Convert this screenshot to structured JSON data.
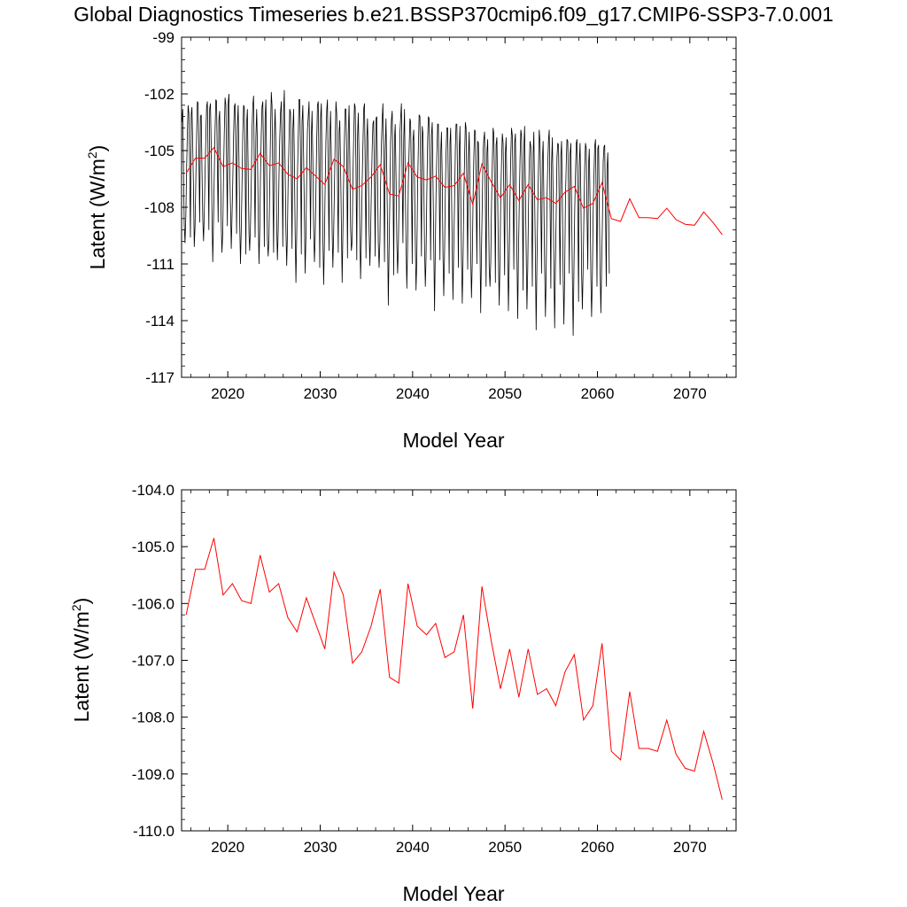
{
  "title": "Global Diagnostics Timeseries b.e21.BSSP370cmip6.f09_g17.CMIP6-SSP3-7.0.001",
  "colors": {
    "monthly": "#000000",
    "annual": "#ff0000",
    "axis": "#000000"
  },
  "chart_data": [
    {
      "type": "line",
      "title": "Global Diagnostics Timeseries b.e21.BSSP370cmip6.f09_g17.CMIP6-SSP3-7.0.001",
      "xlabel": "Model Year",
      "ylabel_main": "Latent (W/m",
      "ylabel_sup": "2",
      "ylabel_close": ")",
      "xlim": [
        2015,
        2075
      ],
      "ylim": [
        -117,
        -99
      ],
      "xticks": [
        2020,
        2030,
        2040,
        2050,
        2060,
        2070
      ],
      "xtick_labels": [
        "2020",
        "2030",
        "2040",
        "2050",
        "2060",
        "2070"
      ],
      "yticks": [
        -99,
        -102,
        -105,
        -108,
        -111,
        -114,
        -117
      ],
      "ytick_labels": [
        "-99",
        "-102",
        "-105",
        "-108",
        "-111",
        "-114",
        "-117"
      ],
      "grid": false,
      "legend": "none",
      "series": [
        {
          "kind": "monthly",
          "color": "#000000",
          "x_start": 2015.04,
          "x_step": 0.08333,
          "values": [
            -103.5,
            -102.8,
            -106.1,
            -108.9,
            -109.9,
            -108.5,
            -106.2,
            -104.1,
            -102.6,
            -103.0,
            -105.8,
            -109.6,
            -103.1,
            -102.7,
            -104.8,
            -107.2,
            -110.1,
            -109.0,
            -106.5,
            -104.4,
            -102.4,
            -102.5,
            -105.1,
            -108.8,
            -103.2,
            -103.1,
            -105.9,
            -108.6,
            -109.8,
            -108.4,
            -106.2,
            -104.3,
            -102.7,
            -102.4,
            -105.5,
            -109.2,
            -102.8,
            -102.5,
            -104.9,
            -108.2,
            -110.9,
            -108.7,
            -106.3,
            -103.9,
            -102.3,
            -102.4,
            -105.7,
            -108.8,
            -103.4,
            -102.9,
            -105.6,
            -109.0,
            -110.4,
            -109.3,
            -106.1,
            -104.1,
            -102.2,
            -102.6,
            -105.3,
            -109.0,
            -102.5,
            -102.0,
            -105.8,
            -107.9,
            -110.2,
            -108.6,
            -106.6,
            -104.2,
            -102.7,
            -102.5,
            -105.4,
            -109.4,
            -103.7,
            -102.6,
            -105.5,
            -108.8,
            -111.0,
            -109.1,
            -106.9,
            -104.1,
            -102.6,
            -102.7,
            -105.6,
            -110.5,
            -103.6,
            -102.8,
            -106.1,
            -109.4,
            -110.3,
            -108.9,
            -106.8,
            -103.9,
            -102.6,
            -102.1,
            -105.8,
            -109.6,
            -104.3,
            -102.8,
            -104.7,
            -108.3,
            -111.0,
            -109.3,
            -106.3,
            -104.1,
            -102.7,
            -102.4,
            -105.5,
            -110.1,
            -103.3,
            -102.3,
            -105.9,
            -109.7,
            -110.6,
            -109.5,
            -107.0,
            -104.0,
            -101.9,
            -102.6,
            -106.6,
            -110.4,
            -104.3,
            -102.8,
            -104.7,
            -109.0,
            -110.8,
            -109.2,
            -106.2,
            -104.4,
            -103.0,
            -102.4,
            -105.1,
            -110.1,
            -102.9,
            -101.8,
            -105.8,
            -109.2,
            -111.1,
            -109.4,
            -106.3,
            -104.5,
            -102.8,
            -103.0,
            -106.4,
            -110.2,
            -103.9,
            -102.8,
            -105.7,
            -109.3,
            -112.0,
            -109.4,
            -106.4,
            -104.3,
            -102.3,
            -102.3,
            -105.3,
            -110.5,
            -103.5,
            -102.6,
            -105.4,
            -108.6,
            -111.5,
            -109.5,
            -106.2,
            -103.9,
            -103.2,
            -102.4,
            -105.6,
            -109.7,
            -104.2,
            -102.9,
            -105.5,
            -109.0,
            -110.9,
            -109.7,
            -107.1,
            -104.4,
            -102.6,
            -102.4,
            -106.3,
            -111.2,
            -103.3,
            -102.5,
            -105.7,
            -109.5,
            -112.1,
            -109.8,
            -106.9,
            -104.4,
            -102.8,
            -102.3,
            -106.5,
            -110.3,
            -104.5,
            -102.9,
            -105.4,
            -109.2,
            -111.2,
            -109.4,
            -106.9,
            -104.5,
            -102.4,
            -103.1,
            -106.4,
            -110.4,
            -104.0,
            -103.4,
            -105.7,
            -108.9,
            -112.0,
            -109.4,
            -106.4,
            -104.3,
            -102.8,
            -102.8,
            -105.6,
            -110.7,
            -104.1,
            -102.6,
            -105.3,
            -109.1,
            -110.3,
            -109.8,
            -106.6,
            -104.3,
            -102.5,
            -102.7,
            -105.9,
            -110.8,
            -104.4,
            -103.0,
            -105.5,
            -109.4,
            -111.8,
            -109.6,
            -106.6,
            -104.8,
            -102.8,
            -102.5,
            -105.9,
            -110.7,
            -104.4,
            -103.3,
            -105.6,
            -109.2,
            -111.1,
            -109.4,
            -107.0,
            -104.9,
            -103.6,
            -103.4,
            -106.7,
            -110.6,
            -103.3,
            -103.2,
            -106.2,
            -109.9,
            -111.2,
            -109.8,
            -106.7,
            -104.7,
            -103.3,
            -102.5,
            -105.5,
            -110.9,
            -104.9,
            -103.3,
            -106.2,
            -109.1,
            -113.2,
            -110.1,
            -107.4,
            -104.5,
            -103.4,
            -102.9,
            -105.8,
            -111.6,
            -104.4,
            -103.6,
            -106.3,
            -109.8,
            -111.5,
            -110.2,
            -107.5,
            -104.1,
            -103.3,
            -102.5,
            -106.7,
            -109.9,
            -104.4,
            -102.8,
            -106.6,
            -109.8,
            -112.3,
            -110.0,
            -106.7,
            -104.9,
            -103.3,
            -103.5,
            -106.8,
            -111.0,
            -104.5,
            -103.9,
            -106.4,
            -109.5,
            -112.4,
            -110.7,
            -106.8,
            -104.9,
            -103.1,
            -103.2,
            -106.2,
            -110.6,
            -103.7,
            -104.1,
            -106.3,
            -110.1,
            -112.2,
            -110.7,
            -107.2,
            -104.5,
            -103.2,
            -103.3,
            -106.9,
            -110.8,
            -104.2,
            -103.5,
            -106.4,
            -110.0,
            -113.5,
            -110.1,
            -107.2,
            -105.2,
            -103.6,
            -103.6,
            -106.8,
            -110.8,
            -105.2,
            -104.0,
            -106.5,
            -110.5,
            -112.7,
            -110.4,
            -107.2,
            -105.1,
            -103.8,
            -103.8,
            -106.9,
            -111.5,
            -104.6,
            -103.8,
            -106.9,
            -110.2,
            -112.9,
            -110.1,
            -107.7,
            -104.9,
            -103.6,
            -103.6,
            -106.9,
            -111.2,
            -105.1,
            -103.7,
            -107.0,
            -110.6,
            -113.1,
            -110.7,
            -107.7,
            -105.4,
            -103.5,
            -103.8,
            -106.9,
            -111.3,
            -105.4,
            -104.0,
            -106.8,
            -110.4,
            -112.8,
            -110.9,
            -107.5,
            -105.4,
            -103.9,
            -104.0,
            -107.1,
            -111.0,
            -104.5,
            -104.6,
            -106.8,
            -110.0,
            -113.6,
            -110.3,
            -107.7,
            -105.1,
            -104.4,
            -104.0,
            -107.6,
            -112.2,
            -105.1,
            -104.4,
            -107.3,
            -111.2,
            -112.2,
            -110.8,
            -107.9,
            -105.7,
            -103.8,
            -104.1,
            -106.9,
            -112.0,
            -104.7,
            -104.3,
            -107.5,
            -110.6,
            -113.2,
            -110.7,
            -107.4,
            -105.7,
            -104.1,
            -104.6,
            -107.1,
            -111.6,
            -105.1,
            -104.3,
            -106.9,
            -110.2,
            -113.5,
            -111.0,
            -107.5,
            -105.2,
            -103.8,
            -104.2,
            -107.2,
            -111.3,
            -104.6,
            -104.1,
            -107.1,
            -110.5,
            -113.9,
            -110.6,
            -108.0,
            -105.5,
            -103.9,
            -104.2,
            -107.2,
            -112.4,
            -104.9,
            -103.7,
            -107.0,
            -110.1,
            -113.4,
            -111.3,
            -107.9,
            -105.7,
            -104.5,
            -104.8,
            -107.4,
            -112.2,
            -105.2,
            -104.0,
            -107.4,
            -110.7,
            -114.5,
            -111.0,
            -108.1,
            -105.8,
            -103.9,
            -104.6,
            -108.0,
            -111.5,
            -105.5,
            -104.5,
            -107.5,
            -111.2,
            -113.8,
            -111.6,
            -107.8,
            -105.7,
            -104.4,
            -103.9,
            -107.8,
            -112.3,
            -105.7,
            -104.3,
            -107.5,
            -110.8,
            -114.4,
            -111.0,
            -108.2,
            -105.4,
            -104.6,
            -104.7,
            -108.1,
            -112.1,
            -105.3,
            -104.5,
            -107.5,
            -111.6,
            -114.2,
            -111.6,
            -107.5,
            -105.7,
            -104.4,
            -104.5,
            -107.2,
            -111.5,
            -105.2,
            -104.6,
            -107.8,
            -111.7,
            -114.8,
            -111.6,
            -108.3,
            -106.2,
            -104.6,
            -104.4,
            -107.6,
            -113.0,
            -105.7,
            -104.6,
            -107.4,
            -111.4,
            -113.4,
            -111.1,
            -108.5,
            -105.9,
            -104.6,
            -104.9,
            -108.3,
            -111.3,
            -105.7,
            -104.9,
            -107.7,
            -111.8,
            -113.8,
            -111.6,
            -108.2,
            -106.2,
            -104.8,
            -104.4,
            -108.0,
            -112.2,
            -104.9,
            -104.7,
            -108.0,
            -111.2,
            -113.6,
            -111.3,
            -108.8,
            -105.6,
            -104.8,
            -104.7,
            -108.3,
            -112.2,
            -106.0,
            -105.1,
            -108.1,
            -111.5
          ]
        },
        {
          "kind": "annual",
          "color": "#ff0000",
          "x": [
            2015.5,
            2016.5,
            2017.5,
            2018.5,
            2019.5,
            2020.5,
            2021.5,
            2022.5,
            2023.5,
            2024.5,
            2025.5,
            2026.5,
            2027.5,
            2028.5,
            2029.5,
            2030.5,
            2031.5,
            2032.5,
            2033.5,
            2034.5,
            2035.5,
            2036.5,
            2037.5,
            2038.5,
            2039.5,
            2040.5,
            2041.5,
            2042.5,
            2043.5,
            2044.5,
            2045.5,
            2046.5,
            2047.5,
            2048.5,
            2049.5,
            2050.5,
            2051.5,
            2052.5,
            2053.5,
            2054.5,
            2055.5,
            2056.5,
            2057.5,
            2058.5,
            2059.5,
            2060.5,
            2061.5,
            2062.5,
            2063.5,
            2064.5,
            2065.5,
            2066.5,
            2067.5,
            2068.5,
            2069.5,
            2070.5,
            2071.5,
            2072.5,
            2073.5
          ],
          "values": [
            -106.2,
            -105.4,
            -105.4,
            -104.85,
            -105.85,
            -105.65,
            -105.95,
            -106.0,
            -105.15,
            -105.8,
            -105.65,
            -106.25,
            -106.5,
            -105.9,
            -106.35,
            -106.8,
            -105.45,
            -105.85,
            -107.05,
            -106.85,
            -106.4,
            -105.75,
            -107.3,
            -107.4,
            -105.65,
            -106.4,
            -106.55,
            -106.35,
            -106.95,
            -106.85,
            -106.2,
            -107.85,
            -105.7,
            -106.65,
            -107.5,
            -106.8,
            -107.65,
            -106.8,
            -107.6,
            -107.5,
            -107.8,
            -107.2,
            -106.9,
            -108.05,
            -107.8,
            -106.7,
            -108.6,
            -108.75,
            -107.55,
            -108.55,
            -108.55,
            -108.6,
            -108.05,
            -108.65,
            -108.9,
            -108.95,
            -108.25,
            -108.8,
            -109.45
          ]
        }
      ]
    },
    {
      "type": "line",
      "xlabel": "Model Year",
      "ylabel_main": "Latent (W/m",
      "ylabel_sup": "2",
      "ylabel_close": ")",
      "xlim": [
        2015,
        2075
      ],
      "ylim": [
        -110.0,
        -104.0
      ],
      "xticks": [
        2020,
        2030,
        2040,
        2050,
        2060,
        2070
      ],
      "xtick_labels": [
        "2020",
        "2030",
        "2040",
        "2050",
        "2060",
        "2070"
      ],
      "yticks": [
        -104.0,
        -105.0,
        -106.0,
        -107.0,
        -108.0,
        -109.0,
        -110.0
      ],
      "ytick_labels": [
        "-104.0",
        "-105.0",
        "-106.0",
        "-107.0",
        "-108.0",
        "-109.0",
        "-110.0"
      ],
      "grid": false,
      "legend": "none",
      "series": [
        {
          "kind": "annual",
          "color": "#ff0000",
          "x": [
            2015.5,
            2016.5,
            2017.5,
            2018.5,
            2019.5,
            2020.5,
            2021.5,
            2022.5,
            2023.5,
            2024.5,
            2025.5,
            2026.5,
            2027.5,
            2028.5,
            2029.5,
            2030.5,
            2031.5,
            2032.5,
            2033.5,
            2034.5,
            2035.5,
            2036.5,
            2037.5,
            2038.5,
            2039.5,
            2040.5,
            2041.5,
            2042.5,
            2043.5,
            2044.5,
            2045.5,
            2046.5,
            2047.5,
            2048.5,
            2049.5,
            2050.5,
            2051.5,
            2052.5,
            2053.5,
            2054.5,
            2055.5,
            2056.5,
            2057.5,
            2058.5,
            2059.5,
            2060.5,
            2061.5,
            2062.5,
            2063.5,
            2064.5,
            2065.5,
            2066.5,
            2067.5,
            2068.5,
            2069.5,
            2070.5,
            2071.5,
            2072.5,
            2073.5
          ],
          "values": [
            -106.2,
            -105.4,
            -105.4,
            -104.85,
            -105.85,
            -105.65,
            -105.95,
            -106.0,
            -105.15,
            -105.8,
            -105.65,
            -106.25,
            -106.5,
            -105.9,
            -106.35,
            -106.8,
            -105.45,
            -105.85,
            -107.05,
            -106.85,
            -106.4,
            -105.75,
            -107.3,
            -107.4,
            -105.65,
            -106.4,
            -106.55,
            -106.35,
            -106.95,
            -106.85,
            -106.2,
            -107.85,
            -105.7,
            -106.65,
            -107.5,
            -106.8,
            -107.65,
            -106.8,
            -107.6,
            -107.5,
            -107.8,
            -107.2,
            -106.9,
            -108.05,
            -107.8,
            -106.7,
            -108.6,
            -108.75,
            -107.55,
            -108.55,
            -108.55,
            -108.6,
            -108.05,
            -108.65,
            -108.9,
            -108.95,
            -108.25,
            -108.8,
            -109.45
          ]
        }
      ]
    }
  ]
}
